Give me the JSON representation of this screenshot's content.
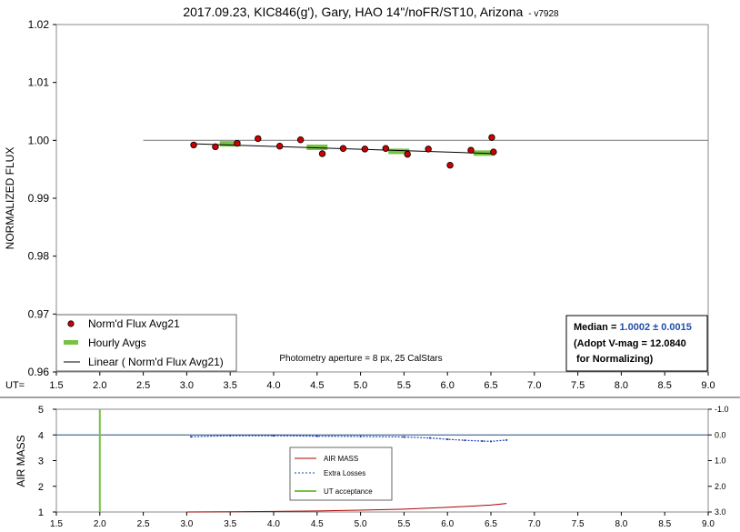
{
  "chart_data": [
    {
      "type": "scatter",
      "title": "2017.09.23, KIC846(g'), Gary, HAO 14\"/noFR/ST10, Arizona",
      "version": "v7928",
      "ylabel": "NORMALIZED FLUX",
      "xlabel_prefix": "UT=",
      "xlim": [
        1.5,
        9.0
      ],
      "ylim": [
        0.96,
        1.02
      ],
      "xticks": [
        "1.5",
        "2.0",
        "2.5",
        "3.0",
        "3.5",
        "4.0",
        "4.5",
        "5.0",
        "5.5",
        "6.0",
        "6.5",
        "7.0",
        "7.5",
        "8.0",
        "8.5",
        "9.0"
      ],
      "yticks": [
        "0.96",
        "0.97",
        "0.98",
        "0.99",
        "1.00",
        "1.01",
        "1.02"
      ],
      "reference_line": {
        "x": [
          2.5,
          9.0
        ],
        "y": 1.0
      },
      "series": [
        {
          "name": "Norm'd Flux Avg21",
          "color": "#cc0000",
          "x": [
            3.08,
            3.33,
            3.58,
            3.82,
            4.07,
            4.31,
            4.56,
            4.8,
            5.05,
            5.29,
            5.54,
            5.78,
            6.03,
            6.27,
            6.51,
            6.53
          ],
          "y": [
            0.9992,
            0.9989,
            0.9995,
            1.0003,
            0.999,
            1.0001,
            0.9977,
            0.9986,
            0.9985,
            0.9986,
            0.9976,
            0.9985,
            0.9957,
            0.9983,
            1.0005,
            0.998
          ]
        },
        {
          "name": "Hourly Avgs",
          "color": "#77c244",
          "segments": [
            {
              "x": [
                3.38,
                3.62
              ],
              "y": 0.9994
            },
            {
              "x": [
                4.38,
                4.62
              ],
              "y": 0.9988
            },
            {
              "x": [
                5.32,
                5.56
              ],
              "y": 0.9981
            },
            {
              "x": [
                6.3,
                6.54
              ],
              "y": 0.9978
            }
          ]
        },
        {
          "name": "Linear ( Norm'd Flux Avg21)",
          "color": "#000000",
          "x": [
            3.08,
            6.55
          ],
          "y": [
            0.9994,
            0.9977
          ]
        }
      ],
      "annotation": "Photometry aperture = 8 px, 25 CalStars",
      "stats_box": {
        "median_label": "Median = ",
        "median_value": "1.0002 ± 0.0015",
        "adopt_line": "(Adopt V-mag = 12.0840",
        "norm_line": "for Normalizing)"
      },
      "legend": "bottom-left"
    },
    {
      "type": "line",
      "ylabel": "AIR MASS",
      "xlim": [
        1.5,
        9.0
      ],
      "ylim": [
        1,
        5
      ],
      "y2lim": [
        3.0,
        -1.0
      ],
      "xticks": [
        "1.5",
        "2.0",
        "2.5",
        "3.0",
        "3.5",
        "4.0",
        "4.5",
        "5.0",
        "5.5",
        "6.0",
        "6.5",
        "7.0",
        "7.5",
        "8.0",
        "8.5",
        "9.0"
      ],
      "yticks": [
        "1",
        "2",
        "3",
        "4",
        "5"
      ],
      "y2ticks": [
        "3.0",
        "2.0",
        "1.0",
        "0.0",
        "-1.0"
      ],
      "series": [
        {
          "name": "AIR MASS",
          "color": "#aa0000",
          "x": [
            3.0,
            3.5,
            4.0,
            4.5,
            5.0,
            5.5,
            6.0,
            6.5,
            6.68
          ],
          "y": [
            1.0,
            1.01,
            1.02,
            1.04,
            1.07,
            1.11,
            1.18,
            1.27,
            1.33
          ]
        },
        {
          "name": "Extra Losses",
          "color": "#1f3fbf",
          "x": [
            3.05,
            3.5,
            4.0,
            4.5,
            5.0,
            5.5,
            5.8,
            6.0,
            6.2,
            6.4,
            6.5,
            6.68
          ],
          "y": [
            0.07,
            0.03,
            0.03,
            0.05,
            0.06,
            0.08,
            0.12,
            0.17,
            0.21,
            0.24,
            0.25,
            0.2
          ]
        },
        {
          "name": "UT acceptance",
          "color": "#77c244",
          "x": [
            2.0,
            2.0
          ],
          "y": [
            1,
            5
          ]
        }
      ],
      "hline": {
        "y2": 0.0,
        "color": "#1f4e79"
      },
      "legend": "center"
    }
  ]
}
